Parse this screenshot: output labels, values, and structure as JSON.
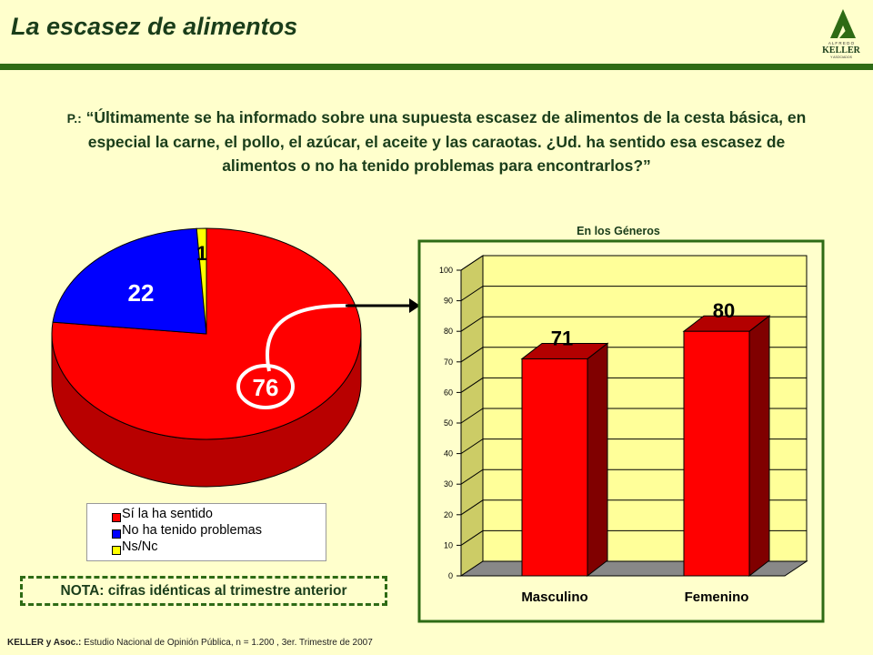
{
  "page": {
    "title": "La escasez de alimentos",
    "logo": {
      "top": "A L F R E D O",
      "main": "KELLER",
      "bottom": "Y  ASOCIADOS",
      "icon": "keller-logo-icon"
    },
    "question_prefix": "P.:",
    "question": "“Últimamente se ha informado sobre una supuesta escasez de alimentos de la cesta básica, en especial la carne, el pollo, el azúcar, el aceite y las caraotas. ¿Ud. ha sentido esa escasez de alimentos o no ha tenido problemas para encontrarlos?”",
    "panel_label": "En los Géneros",
    "note": "NOTA: cifras idénticas al trimestre anterior",
    "footer_bold": "KELLER y Asoc.:",
    "footer_text": " Estudio Nacional de Opinión Pública, n = 1.200 , 3er. Trimestre de 2007"
  },
  "colors": {
    "green": "#2e6b15",
    "red": "#ff0000",
    "blue": "#0000ff",
    "yellow": "#ffff00",
    "plot_bg": "#ffff99"
  },
  "chart_data": [
    {
      "type": "pie",
      "categories": [
        "Sí la ha sentido",
        "No ha tenido problemas",
        "Ns/Nc"
      ],
      "values": [
        76,
        22,
        1
      ],
      "data_labels": [
        "76",
        "22",
        "1"
      ],
      "colors": [
        "#ff0000",
        "#0000ff",
        "#ffff00"
      ],
      "legend": "bottom"
    },
    {
      "type": "bar",
      "title": "En los Géneros",
      "categories": [
        "Masculino",
        "Femenino"
      ],
      "values": [
        71,
        80
      ],
      "data_labels": [
        "71",
        "80"
      ],
      "ylim": [
        0,
        100
      ],
      "yticks": [
        0,
        10,
        20,
        30,
        40,
        50,
        60,
        70,
        80,
        90,
        100
      ],
      "grid": true
    }
  ]
}
